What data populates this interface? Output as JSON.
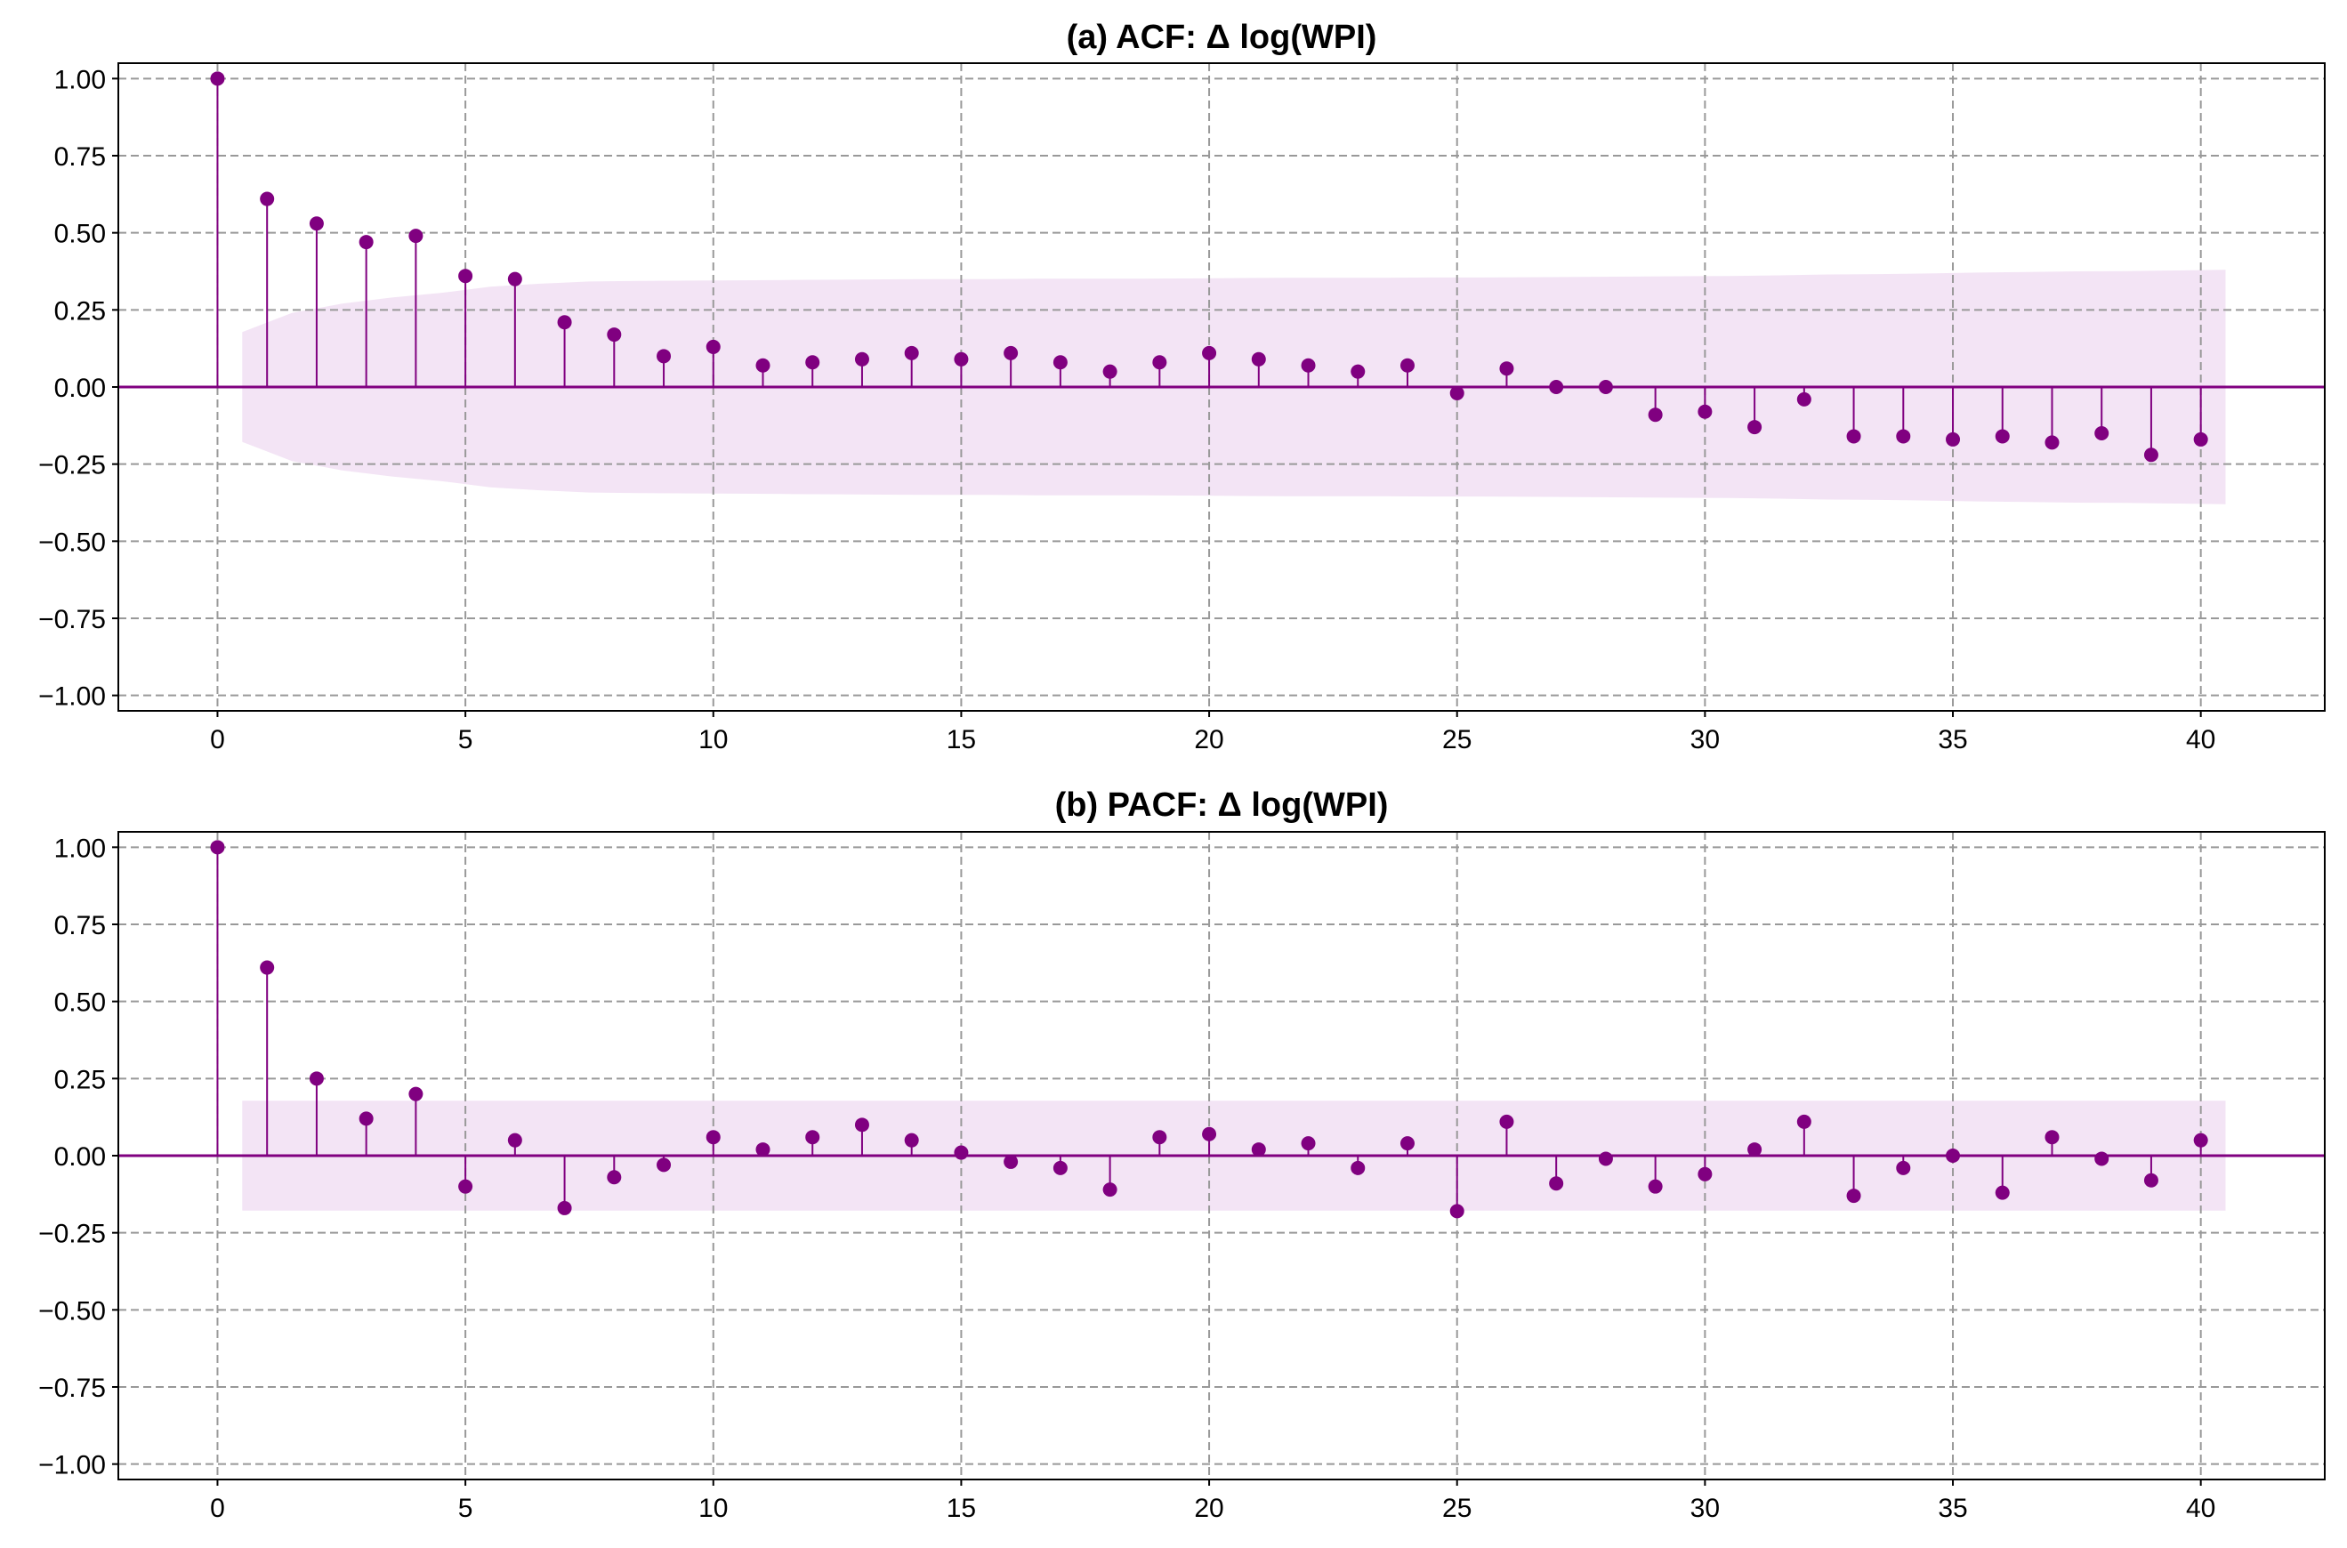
{
  "colors": {
    "stem": "#800080",
    "marker": "#800080",
    "baseline": "#800080",
    "confidence_band": "#f3e4f5",
    "grid": "#999999",
    "axes": "#000000",
    "background": "#ffffff"
  },
  "chart_data": [
    {
      "type": "stem",
      "title": "(a) ACF: Δ log(WPI)",
      "xlabel": "",
      "ylabel": "",
      "grid": true,
      "xlim": [
        -2,
        42.5
      ],
      "ylim": [
        -1.05,
        1.05
      ],
      "xticks": [
        0,
        5,
        10,
        15,
        20,
        25,
        30,
        35,
        40
      ],
      "yticks": [
        1.0,
        0.75,
        0.5,
        0.25,
        0.0,
        -0.25,
        -0.5,
        -0.75,
        -1.0
      ],
      "ytick_labels": [
        "1.00",
        "0.75",
        "0.50",
        "0.25",
        "0.00",
        "−0.25",
        "−0.50",
        "−0.75",
        "−1.00"
      ],
      "lags": [
        0,
        1,
        2,
        3,
        4,
        5,
        6,
        7,
        8,
        9,
        10,
        11,
        12,
        13,
        14,
        15,
        16,
        17,
        18,
        19,
        20,
        21,
        22,
        23,
        24,
        25,
        26,
        27,
        28,
        29,
        30,
        31,
        32,
        33,
        34,
        35,
        36,
        37,
        38,
        39,
        40
      ],
      "values": [
        1.0,
        0.61,
        0.53,
        0.47,
        0.49,
        0.36,
        0.35,
        0.21,
        0.17,
        0.1,
        0.13,
        0.07,
        0.08,
        0.09,
        0.11,
        0.09,
        0.11,
        0.08,
        0.05,
        0.08,
        0.11,
        0.09,
        0.07,
        0.05,
        0.07,
        -0.02,
        0.06,
        0.0,
        0.0,
        -0.09,
        -0.08,
        -0.13,
        -0.04,
        -0.16,
        -0.16,
        -0.17,
        -0.16,
        -0.18,
        -0.15,
        -0.22,
        -0.17
      ],
      "confidence_band": {
        "x_start": 0.5,
        "x_end": 40.5,
        "upper": [
          0.178,
          0.24,
          0.27,
          0.29,
          0.305,
          0.325,
          0.335,
          0.342,
          0.344,
          0.345,
          0.346,
          0.347,
          0.348,
          0.349,
          0.35,
          0.35,
          0.351,
          0.351,
          0.351,
          0.352,
          0.353,
          0.354,
          0.354,
          0.354,
          0.355,
          0.355,
          0.356,
          0.357,
          0.358,
          0.359,
          0.36,
          0.362,
          0.365,
          0.366,
          0.368,
          0.371,
          0.373,
          0.375,
          0.376,
          0.378,
          0.38
        ]
      }
    },
    {
      "type": "stem",
      "title": "(b) PACF: Δ log(WPI)",
      "xlabel": "",
      "ylabel": "",
      "grid": true,
      "xlim": [
        -2,
        42.5
      ],
      "ylim": [
        -1.05,
        1.05
      ],
      "xticks": [
        0,
        5,
        10,
        15,
        20,
        25,
        30,
        35,
        40
      ],
      "yticks": [
        1.0,
        0.75,
        0.5,
        0.25,
        0.0,
        -0.25,
        -0.5,
        -0.75,
        -1.0
      ],
      "ytick_labels": [
        "1.00",
        "0.75",
        "0.50",
        "0.25",
        "0.00",
        "−0.25",
        "−0.50",
        "−0.75",
        "−1.00"
      ],
      "lags": [
        0,
        1,
        2,
        3,
        4,
        5,
        6,
        7,
        8,
        9,
        10,
        11,
        12,
        13,
        14,
        15,
        16,
        17,
        18,
        19,
        20,
        21,
        22,
        23,
        24,
        25,
        26,
        27,
        28,
        29,
        30,
        31,
        32,
        33,
        34,
        35,
        36,
        37,
        38,
        39,
        40
      ],
      "values": [
        1.0,
        0.61,
        0.25,
        0.12,
        0.2,
        -0.1,
        0.05,
        -0.17,
        -0.07,
        -0.03,
        0.06,
        0.02,
        0.06,
        0.1,
        0.05,
        0.01,
        -0.02,
        -0.04,
        -0.11,
        0.06,
        0.07,
        0.02,
        0.04,
        -0.04,
        0.04,
        -0.18,
        0.11,
        -0.09,
        -0.01,
        -0.1,
        -0.06,
        0.02,
        0.11,
        -0.13,
        -0.04,
        0.0,
        -0.12,
        0.06,
        -0.01,
        -0.08,
        0.05
      ],
      "confidence_band": {
        "x_start": 0.5,
        "x_end": 40.5,
        "upper": [
          0.178,
          0.178,
          0.178,
          0.178,
          0.178,
          0.178,
          0.178,
          0.178,
          0.178,
          0.178,
          0.178,
          0.178,
          0.178,
          0.178,
          0.178,
          0.178,
          0.178,
          0.178,
          0.178,
          0.178,
          0.178,
          0.178,
          0.178,
          0.178,
          0.178,
          0.178,
          0.178,
          0.178,
          0.178,
          0.178,
          0.178,
          0.178,
          0.178,
          0.178,
          0.178,
          0.178,
          0.178,
          0.178,
          0.178,
          0.178,
          0.178
        ]
      }
    }
  ]
}
